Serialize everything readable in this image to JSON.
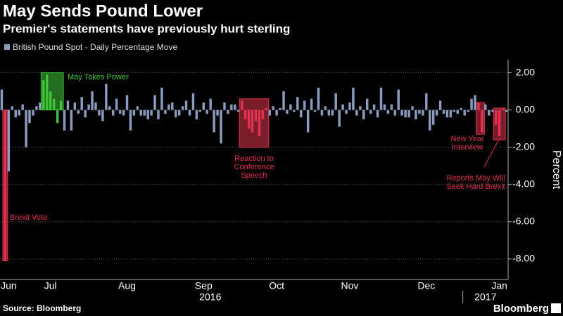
{
  "chart_data": {
    "type": "bar",
    "title": "May Sends Pound Lower",
    "subtitle": "Premier's statements have previously hurt sterling",
    "source": "Source: Bloomberg",
    "brand": "Bloomberg",
    "ylabel": "Percent",
    "categories": [
      null,
      null,
      "Jun",
      null,
      null,
      null,
      null,
      null,
      null,
      null,
      null,
      null,
      null,
      null,
      "Jul",
      null,
      null,
      null,
      null,
      null,
      null,
      null,
      null,
      null,
      null,
      null,
      null,
      null,
      null,
      null,
      null,
      null,
      null,
      null,
      null,
      null,
      "Aug",
      null,
      null,
      null,
      null,
      null,
      null,
      null,
      null,
      null,
      null,
      null,
      null,
      null,
      null,
      null,
      null,
      null,
      null,
      null,
      null,
      null,
      "Sep",
      null,
      null,
      null,
      null,
      null,
      null,
      null,
      null,
      null,
      null,
      null,
      null,
      null,
      null,
      null,
      null,
      null,
      null,
      null,
      null,
      "Oct",
      null,
      null,
      null,
      null,
      null,
      null,
      null,
      null,
      null,
      null,
      null,
      null,
      null,
      null,
      null,
      null,
      null,
      null,
      null,
      null,
      "Nov",
      null,
      null,
      null,
      null,
      null,
      null,
      null,
      null,
      null,
      null,
      null,
      null,
      null,
      null,
      null,
      null,
      null,
      null,
      null,
      null,
      null,
      "Dec",
      null,
      null,
      null,
      null,
      null,
      null,
      null,
      null,
      null,
      null,
      null,
      null,
      null,
      null,
      null,
      null,
      null,
      null,
      null,
      null,
      "Jan",
      null,
      null
    ],
    "years": [
      "2016",
      "2017"
    ],
    "series": [
      {
        "name": "British Pound Spot - Daily Percentage Move",
        "color": "#8a9bbd",
        "values": [
          1.1,
          -8.1,
          -3.3,
          0.2,
          -0.4,
          -0.3,
          0.3,
          -2.0,
          -0.7,
          -0.3,
          0.2,
          0.4,
          1.6,
          1.9,
          1.0,
          0.6,
          -0.7,
          0.5,
          -1.1,
          0.5,
          -1.1,
          0.4,
          -0.2,
          0.7,
          -0.4,
          0.3,
          1.0,
          0.4,
          -0.3,
          -0.6,
          1.4,
          0.2,
          -0.3,
          0.6,
          -0.2,
          -0.3,
          0.8,
          -1.1,
          -0.3,
          0.2,
          -0.3,
          -0.3,
          -0.5,
          -0.3,
          0.8,
          -0.5,
          1.2,
          -0.2,
          0.3,
          0.4,
          -0.4,
          -0.3,
          0.2,
          0.5,
          -0.3,
          0.9,
          -0.5,
          -0.1,
          0.4,
          -0.2,
          0.6,
          -1.2,
          -0.3,
          -1.8,
          0.4,
          -0.2,
          0.3,
          0.3,
          -0.1,
          0.5,
          -0.5,
          -1.0,
          -1.2,
          -0.6,
          -1.4,
          -0.5,
          0.1,
          -0.3,
          0.2,
          -0.3,
          0.1,
          1.0,
          -0.2,
          0.3,
          -0.1,
          0.7,
          -0.4,
          0.5,
          -1.2,
          0.6,
          -0.1,
          1.2,
          -0.3,
          0.2,
          -0.3,
          -0.3,
          0.9,
          -0.9,
          0.3,
          -0.2,
          0.4,
          1.2,
          -0.3,
          0.2,
          -0.5,
          0.6,
          -0.2,
          0.3,
          -0.4,
          1.2,
          0.3,
          -0.2,
          0.3,
          -0.3,
          1.1,
          -0.3,
          -0.4,
          -0.4,
          0.2,
          -0.5,
          -0.2,
          -0.3,
          0.9,
          -1.1,
          -0.8,
          -0.3,
          0.5,
          -0.2,
          -0.4,
          -0.4,
          -0.1,
          -0.2,
          0.1,
          -0.3,
          -0.1,
          0.6,
          0.8,
          0.4,
          -1.2,
          0.3,
          -0.3,
          -0.1,
          -0.8,
          -1.4,
          0.1,
          -0.1
        ]
      }
    ],
    "annotations": [
      {
        "lines": [
          "Brexit Vote"
        ],
        "color": "#e0334f",
        "from_index": 1,
        "to_index": 1,
        "range": [
          -8.1,
          0
        ]
      },
      {
        "lines": [
          "May Takes Power"
        ],
        "color": "#3fc43a",
        "from_index": 12,
        "to_index": 17,
        "range": [
          0,
          2
        ]
      },
      {
        "lines": [
          "Reaction to",
          "Conference",
          "Speech"
        ],
        "color": "#e0334f",
        "from_index": 69,
        "to_index": 76,
        "range": [
          -2,
          0.6
        ]
      },
      {
        "lines": [
          "New Year",
          "Interview"
        ],
        "color": "#e0334f",
        "from_index": 137,
        "to_index": 138,
        "range": [
          -1.3,
          0.4
        ]
      },
      {
        "lines": [
          "Reports May Will",
          "Seek Hard Brexit"
        ],
        "color": "#e0334f",
        "from_index": 142,
        "to_index": 144,
        "range": [
          -1.6,
          0.1
        ]
      }
    ],
    "ylim": [
      -9.1,
      2.7
    ],
    "yticks": [
      {
        "value": 2,
        "label": "2.00"
      },
      {
        "value": 0,
        "label": "0.00"
      },
      {
        "value": -2,
        "label": "-2.00"
      },
      {
        "value": -4,
        "label": "-4.00"
      },
      {
        "value": -6,
        "label": "-6.00"
      },
      {
        "value": -8,
        "label": "-8.00"
      }
    ],
    "grid": true
  }
}
